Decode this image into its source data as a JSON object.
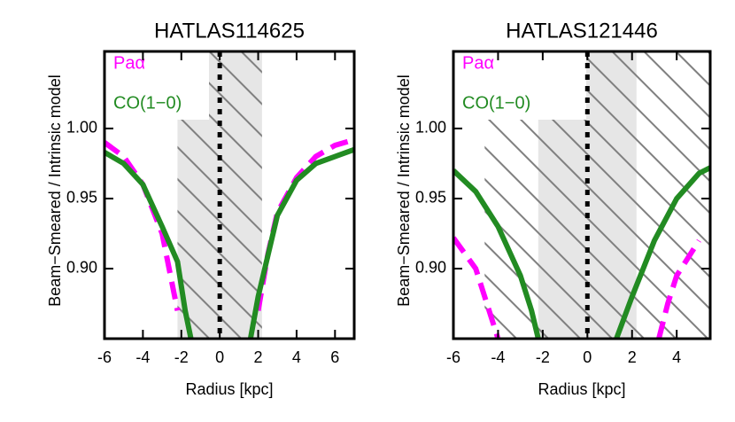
{
  "chart_data": [
    {
      "type": "line",
      "title": "HATLAS114625",
      "xlabel": "Radius [kpc]",
      "ylabel": "Beam−Smeared / Intrinsic model",
      "xlim": [
        -6,
        7
      ],
      "ylim": [
        0.85,
        1.055
      ],
      "xticks": [
        -6,
        -4,
        -2,
        0,
        2,
        4,
        6
      ],
      "yticks": [
        {
          "value": 0.9,
          "label": "0.90"
        },
        {
          "value": 0.95,
          "label": "0.95"
        },
        {
          "value": 1.0,
          "label": "1.00"
        }
      ],
      "shaded": [
        -2.2,
        2.2
      ],
      "hatched": [
        -2.2,
        2.2
      ],
      "center_line": 0,
      "series": [
        {
          "name": "Paα",
          "color": "#ff00ff",
          "dashed": true,
          "x": [
            -6,
            -5,
            -4,
            -3,
            -2.2,
            null,
            2,
            2.5,
            3,
            4,
            5,
            6,
            7
          ],
          "values": [
            0.99,
            0.98,
            0.96,
            0.925,
            0.87,
            null,
            0.87,
            0.91,
            0.94,
            0.965,
            0.98,
            0.988,
            0.992
          ]
        },
        {
          "name": "CO(1−0)",
          "color": "#228b22",
          "dashed": false,
          "x": [
            -6,
            -5,
            -4,
            -3,
            -2.2,
            -1.8,
            -1.5,
            null,
            1.6,
            2,
            3,
            4,
            5,
            6,
            7
          ],
          "values": [
            0.983,
            0.975,
            0.96,
            0.93,
            0.905,
            0.87,
            0.85,
            null,
            0.85,
            0.88,
            0.938,
            0.963,
            0.975,
            0.98,
            0.985
          ]
        }
      ]
    },
    {
      "type": "line",
      "title": "HATLAS121446",
      "xlabel": "Radius [kpc]",
      "ylabel": "Beam−Smeared / Intrinsic model",
      "xlim": [
        -6,
        5.5
      ],
      "ylim": [
        0.85,
        1.055
      ],
      "xticks": [
        -6,
        -4,
        -2,
        0,
        2,
        4
      ],
      "yticks": [
        {
          "value": 0.9,
          "label": "0.90"
        },
        {
          "value": 0.95,
          "label": "0.95"
        },
        {
          "value": 1.0,
          "label": "1.00"
        }
      ],
      "shaded": [
        -2.2,
        2.2
      ],
      "hatched": [
        -4.6,
        5.5
      ],
      "center_line": 0,
      "series": [
        {
          "name": "Paα",
          "color": "#ff00ff",
          "dashed": true,
          "x": [
            -6,
            -5,
            -4.5,
            -4,
            null,
            3.2,
            3.6,
            4,
            5
          ],
          "values": [
            0.922,
            0.9,
            0.875,
            0.85,
            null,
            0.85,
            0.875,
            0.895,
            0.92
          ]
        },
        {
          "name": "CO(1−0)",
          "color": "#228b22",
          "dashed": false,
          "x": [
            -6,
            -5,
            -4,
            -3,
            -2.5,
            -2.2,
            null,
            1.3,
            2,
            3,
            4,
            5,
            5.5
          ],
          "values": [
            0.97,
            0.955,
            0.93,
            0.895,
            0.87,
            0.85,
            null,
            0.85,
            0.88,
            0.92,
            0.95,
            0.968,
            0.972
          ]
        }
      ]
    }
  ]
}
